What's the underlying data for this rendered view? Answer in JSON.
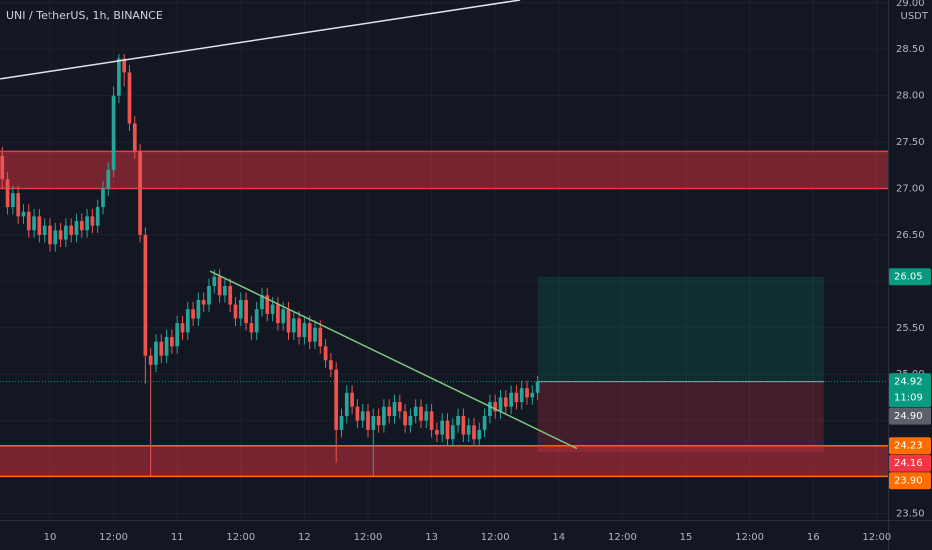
{
  "chart_data": {
    "type": "candlestick",
    "title": "UNI / TetherUS, 1h, BINANCE",
    "currency": "USDT",
    "countdown": "11:09",
    "up_color": "#26a69a",
    "down_color": "#ef5350",
    "x": [
      -9,
      -8,
      -7,
      -6,
      -5,
      -4,
      -3,
      -2,
      -1,
      0,
      1,
      2,
      3,
      4,
      5,
      6,
      7,
      8,
      9,
      10,
      11,
      12,
      13,
      14,
      15,
      16,
      17,
      18,
      19,
      20,
      21,
      22,
      23,
      24,
      25,
      26,
      27,
      28,
      29,
      30,
      31,
      32,
      33,
      34,
      35,
      36,
      37,
      38,
      39,
      40,
      41,
      42,
      43,
      44,
      45,
      46,
      47,
      48,
      49,
      50,
      51,
      52,
      53,
      54,
      55,
      56,
      57,
      58,
      59,
      60,
      61,
      62,
      63,
      64,
      65,
      66,
      67,
      68,
      69,
      70,
      71,
      72,
      73,
      74,
      75,
      76,
      77,
      78,
      79,
      80,
      81,
      82,
      83,
      84,
      85,
      86,
      87,
      88,
      89,
      90,
      91,
      92
    ],
    "open": [
      27.35,
      27.1,
      26.8,
      26.95,
      26.7,
      26.75,
      26.55,
      26.7,
      26.5,
      26.6,
      26.4,
      26.55,
      26.45,
      26.6,
      26.5,
      26.65,
      26.55,
      26.7,
      26.6,
      26.8,
      27.0,
      27.2,
      28.0,
      28.4,
      28.25,
      27.7,
      27.4,
      26.5,
      25.2,
      25.1,
      25.35,
      25.2,
      25.4,
      25.3,
      25.55,
      25.45,
      25.7,
      25.6,
      25.8,
      25.75,
      25.95,
      26.05,
      25.85,
      25.95,
      25.75,
      25.6,
      25.8,
      25.55,
      25.45,
      25.7,
      25.85,
      25.65,
      25.75,
      25.55,
      25.7,
      25.45,
      25.6,
      25.4,
      25.55,
      25.35,
      25.5,
      25.3,
      25.15,
      25.05,
      24.4,
      24.55,
      24.8,
      24.65,
      24.5,
      24.6,
      24.4,
      24.55,
      24.45,
      24.65,
      24.55,
      24.7,
      24.6,
      24.45,
      24.55,
      24.65,
      24.5,
      24.6,
      24.4,
      24.35,
      24.5,
      24.3,
      24.45,
      24.55,
      24.35,
      24.45,
      24.3,
      24.4,
      24.55,
      24.7,
      24.6,
      24.75,
      24.65,
      24.8,
      24.7,
      24.85,
      24.75,
      24.8
    ],
    "high": [
      27.45,
      27.18,
      27.03,
      27.03,
      26.83,
      26.83,
      26.78,
      26.78,
      26.68,
      26.68,
      26.63,
      26.63,
      26.68,
      26.68,
      26.73,
      26.73,
      26.78,
      26.78,
      26.88,
      27.08,
      27.28,
      28.1,
      28.45,
      28.45,
      28.33,
      27.78,
      27.48,
      26.58,
      25.28,
      25.43,
      25.43,
      25.48,
      25.48,
      25.63,
      25.63,
      25.78,
      25.78,
      25.88,
      25.88,
      26.03,
      26.13,
      26.13,
      26.03,
      26.03,
      25.83,
      25.88,
      25.88,
      25.63,
      25.78,
      25.93,
      25.93,
      25.83,
      25.83,
      25.78,
      25.78,
      25.68,
      25.68,
      25.63,
      25.63,
      25.58,
      25.58,
      25.38,
      25.23,
      25.13,
      24.63,
      24.88,
      24.88,
      24.73,
      24.68,
      24.68,
      24.63,
      24.63,
      24.73,
      24.73,
      24.78,
      24.78,
      24.68,
      24.63,
      24.73,
      24.73,
      24.68,
      24.68,
      24.48,
      24.58,
      24.58,
      24.53,
      24.63,
      24.63,
      24.53,
      24.53,
      24.48,
      24.63,
      24.78,
      24.78,
      24.83,
      24.83,
      24.88,
      24.88,
      24.93,
      24.93,
      24.88,
      24.98
    ],
    "low": [
      27.0,
      26.72,
      26.72,
      26.62,
      26.62,
      26.47,
      26.47,
      26.42,
      26.42,
      26.32,
      26.32,
      26.37,
      26.37,
      26.42,
      26.42,
      26.47,
      26.47,
      26.52,
      26.52,
      26.72,
      26.92,
      27.12,
      27.92,
      28.1,
      27.62,
      27.32,
      26.42,
      24.9,
      23.9,
      25.02,
      25.12,
      25.12,
      25.22,
      25.22,
      25.37,
      25.37,
      25.52,
      25.52,
      25.67,
      25.67,
      25.87,
      25.77,
      25.77,
      25.67,
      25.52,
      25.52,
      25.47,
      25.37,
      25.37,
      25.62,
      25.57,
      25.57,
      25.47,
      25.47,
      25.37,
      25.37,
      25.32,
      25.32,
      25.27,
      25.27,
      25.22,
      25.07,
      24.97,
      24.05,
      24.32,
      24.47,
      24.57,
      24.42,
      24.42,
      24.32,
      23.9,
      24.37,
      24.37,
      24.47,
      24.47,
      24.52,
      24.37,
      24.37,
      24.47,
      24.42,
      24.42,
      24.32,
      24.27,
      24.27,
      24.22,
      24.22,
      24.37,
      24.27,
      24.27,
      24.22,
      24.22,
      24.32,
      24.47,
      24.52,
      24.52,
      24.57,
      24.57,
      24.62,
      24.62,
      24.67,
      24.67,
      24.72
    ],
    "close": [
      27.1,
      26.8,
      26.95,
      26.7,
      26.75,
      26.55,
      26.7,
      26.5,
      26.6,
      26.4,
      26.55,
      26.45,
      26.6,
      26.5,
      26.65,
      26.55,
      26.7,
      26.6,
      26.8,
      27.0,
      27.2,
      28.0,
      28.4,
      28.25,
      27.7,
      27.4,
      26.5,
      25.2,
      25.1,
      25.35,
      25.2,
      25.4,
      25.3,
      25.55,
      25.45,
      25.7,
      25.6,
      25.8,
      25.75,
      25.95,
      26.05,
      25.85,
      25.95,
      25.75,
      25.6,
      25.8,
      25.55,
      25.45,
      25.7,
      25.85,
      25.65,
      25.75,
      25.55,
      25.7,
      25.45,
      25.6,
      25.4,
      25.55,
      25.35,
      25.5,
      25.3,
      25.15,
      25.05,
      24.4,
      24.55,
      24.8,
      24.65,
      24.5,
      24.6,
      24.4,
      24.55,
      24.45,
      24.65,
      24.55,
      24.7,
      24.6,
      24.45,
      24.55,
      24.65,
      24.5,
      24.6,
      24.4,
      24.35,
      24.5,
      24.3,
      24.45,
      24.55,
      24.35,
      24.45,
      24.3,
      24.4,
      24.55,
      24.7,
      24.6,
      24.75,
      24.65,
      24.8,
      24.7,
      24.85,
      24.75,
      24.8,
      24.92
    ],
    "xlim": [
      -9.43,
      158.11
    ],
    "xticks": [
      {
        "value": 0,
        "label": "10"
      },
      {
        "value": 12,
        "label": "12:00"
      },
      {
        "value": 24,
        "label": "11"
      },
      {
        "value": 36,
        "label": "12:00"
      },
      {
        "value": 48,
        "label": "12"
      },
      {
        "value": 60,
        "label": "12:00"
      },
      {
        "value": 72,
        "label": "13"
      },
      {
        "value": 84,
        "label": "12:00"
      },
      {
        "value": 96,
        "label": "14"
      },
      {
        "value": 108,
        "label": "12:00"
      },
      {
        "value": 120,
        "label": "15"
      },
      {
        "value": 132,
        "label": "12:00"
      },
      {
        "value": 144,
        "label": "16"
      },
      {
        "value": 156,
        "label": "12:00"
      }
    ],
    "ylim": [
      23.43,
      29.03
    ],
    "yticks": [
      {
        "value": 23.5,
        "label": "23.50"
      },
      {
        "value": 24,
        "label": "24.00"
      },
      {
        "value": 24.5,
        "label": "24.50"
      },
      {
        "value": 25,
        "label": "25.00"
      },
      {
        "value": 25.5,
        "label": "25.50"
      },
      {
        "value": 26,
        "label": "26.00"
      },
      {
        "value": 26.5,
        "label": "26.50"
      },
      {
        "value": 27,
        "label": "27.00"
      },
      {
        "value": 27.5,
        "label": "27.50"
      },
      {
        "value": 28,
        "label": "28.00"
      },
      {
        "value": 28.5,
        "label": "28.50"
      },
      {
        "value": 29,
        "label": "29.00"
      }
    ],
    "grid": true,
    "zones": [
      {
        "low": 27.0,
        "high": 27.4,
        "color": "#f23645",
        "border": "#f23645"
      },
      {
        "low": 23.9,
        "high": 24.23,
        "color": "#f23645",
        "border": "#ff6d00"
      }
    ],
    "trendlines": [
      {
        "x": [
          -9.4,
          88.7
        ],
        "y": [
          28.18,
          29.03
        ],
        "color": "#e0e3eb"
      },
      {
        "x": [
          30.2,
          99.4
        ],
        "y": [
          26.11,
          24.2
        ],
        "color": "#81c784"
      }
    ],
    "position": {
      "start": 92,
      "end": 146,
      "entry": 24.92,
      "target": 26.05,
      "stop": 24.16
    },
    "price_labels": [
      {
        "value": 26.05,
        "color": "#089981"
      },
      {
        "value": 24.92,
        "color": "#089981"
      },
      {
        "value": 24.9,
        "label": "24.90",
        "color": "#5d606b"
      },
      {
        "value": 24.23,
        "color": "#ff6d00"
      },
      {
        "value": 24.16,
        "color": "#f23645"
      },
      {
        "value": 23.9,
        "label": "23.90",
        "color": "#ff6d00"
      }
    ]
  }
}
